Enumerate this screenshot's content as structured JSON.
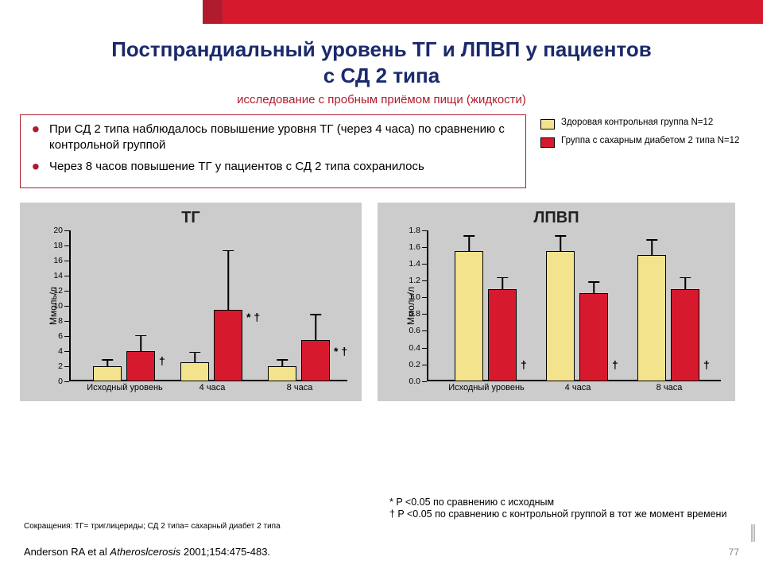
{
  "colors": {
    "red_dark": "#b01c2d",
    "red_bright": "#d7192e",
    "navy": "#1a2a6b",
    "chart_bg": "#cccccc",
    "control": "#f4e38d",
    "diabetes": "#d7192e",
    "black": "#000000"
  },
  "title_line1": "Постпрандиальный уровень ТГ и ЛПВП у пациентов",
  "title_line2": "с СД 2 типа",
  "subtitle": "исследование с пробным приёмом пищи (жидкости)",
  "bullets": [
    "При СД 2 типа наблюдалось повышение уровня ТГ (через 4 часа) по сравнению с контрольной группой",
    "Через 8 часов повышение ТГ у пациентов с СД 2 типа сохранилось"
  ],
  "legend": [
    {
      "color": "#f4e38d",
      "label": "Здоровая контрольная группа N=12"
    },
    {
      "color": "#d7192e",
      "label": "Группа с сахарным диабетом 2 типа N=12"
    }
  ],
  "chart1": {
    "title": "ТГ",
    "ylabel": "Ммоль/л",
    "ymax": 20,
    "ytick_step": 2,
    "categories": [
      "Исходный уровень",
      "4 часа",
      "8 часа"
    ],
    "groups": [
      {
        "control": 2.0,
        "control_err": 1.0,
        "diabetes": 4.0,
        "diabetes_err": 2.2,
        "sig": "†"
      },
      {
        "control": 2.5,
        "control_err": 1.5,
        "diabetes": 9.5,
        "diabetes_err": 8.0,
        "sig": "* †"
      },
      {
        "control": 2.0,
        "control_err": 1.0,
        "diabetes": 5.5,
        "diabetes_err": 3.5,
        "sig": "* †"
      }
    ]
  },
  "chart2": {
    "title": "ЛПВП",
    "ylabel": "Ммоль/л",
    "ymax": 1.8,
    "ytick_step": 0.2,
    "categories": [
      "Исходный уровень",
      "4 часа",
      "8 часа"
    ],
    "groups": [
      {
        "control": 1.55,
        "control_err": 0.2,
        "diabetes": 1.1,
        "diabetes_err": 0.15,
        "sig": "†"
      },
      {
        "control": 1.55,
        "control_err": 0.2,
        "diabetes": 1.05,
        "diabetes_err": 0.15,
        "sig": "†"
      },
      {
        "control": 1.5,
        "control_err": 0.2,
        "diabetes": 1.1,
        "diabetes_err": 0.15,
        "sig": "†"
      }
    ]
  },
  "footnote1": "* P <0.05 по сравнению с исходным",
  "footnote2": "† P <0.05 по сравнению с контрольной группой в тот же момент времени",
  "abbrev": "Сокращения: ТГ= триглицериды; СД 2 типа= сахарный диабет 2 типа",
  "citation_prefix": "Anderson RA et al ",
  "citation_ital": "Atheroslcerosis",
  "citation_suffix": " 2001;154:475-483.",
  "page_number": "77"
}
